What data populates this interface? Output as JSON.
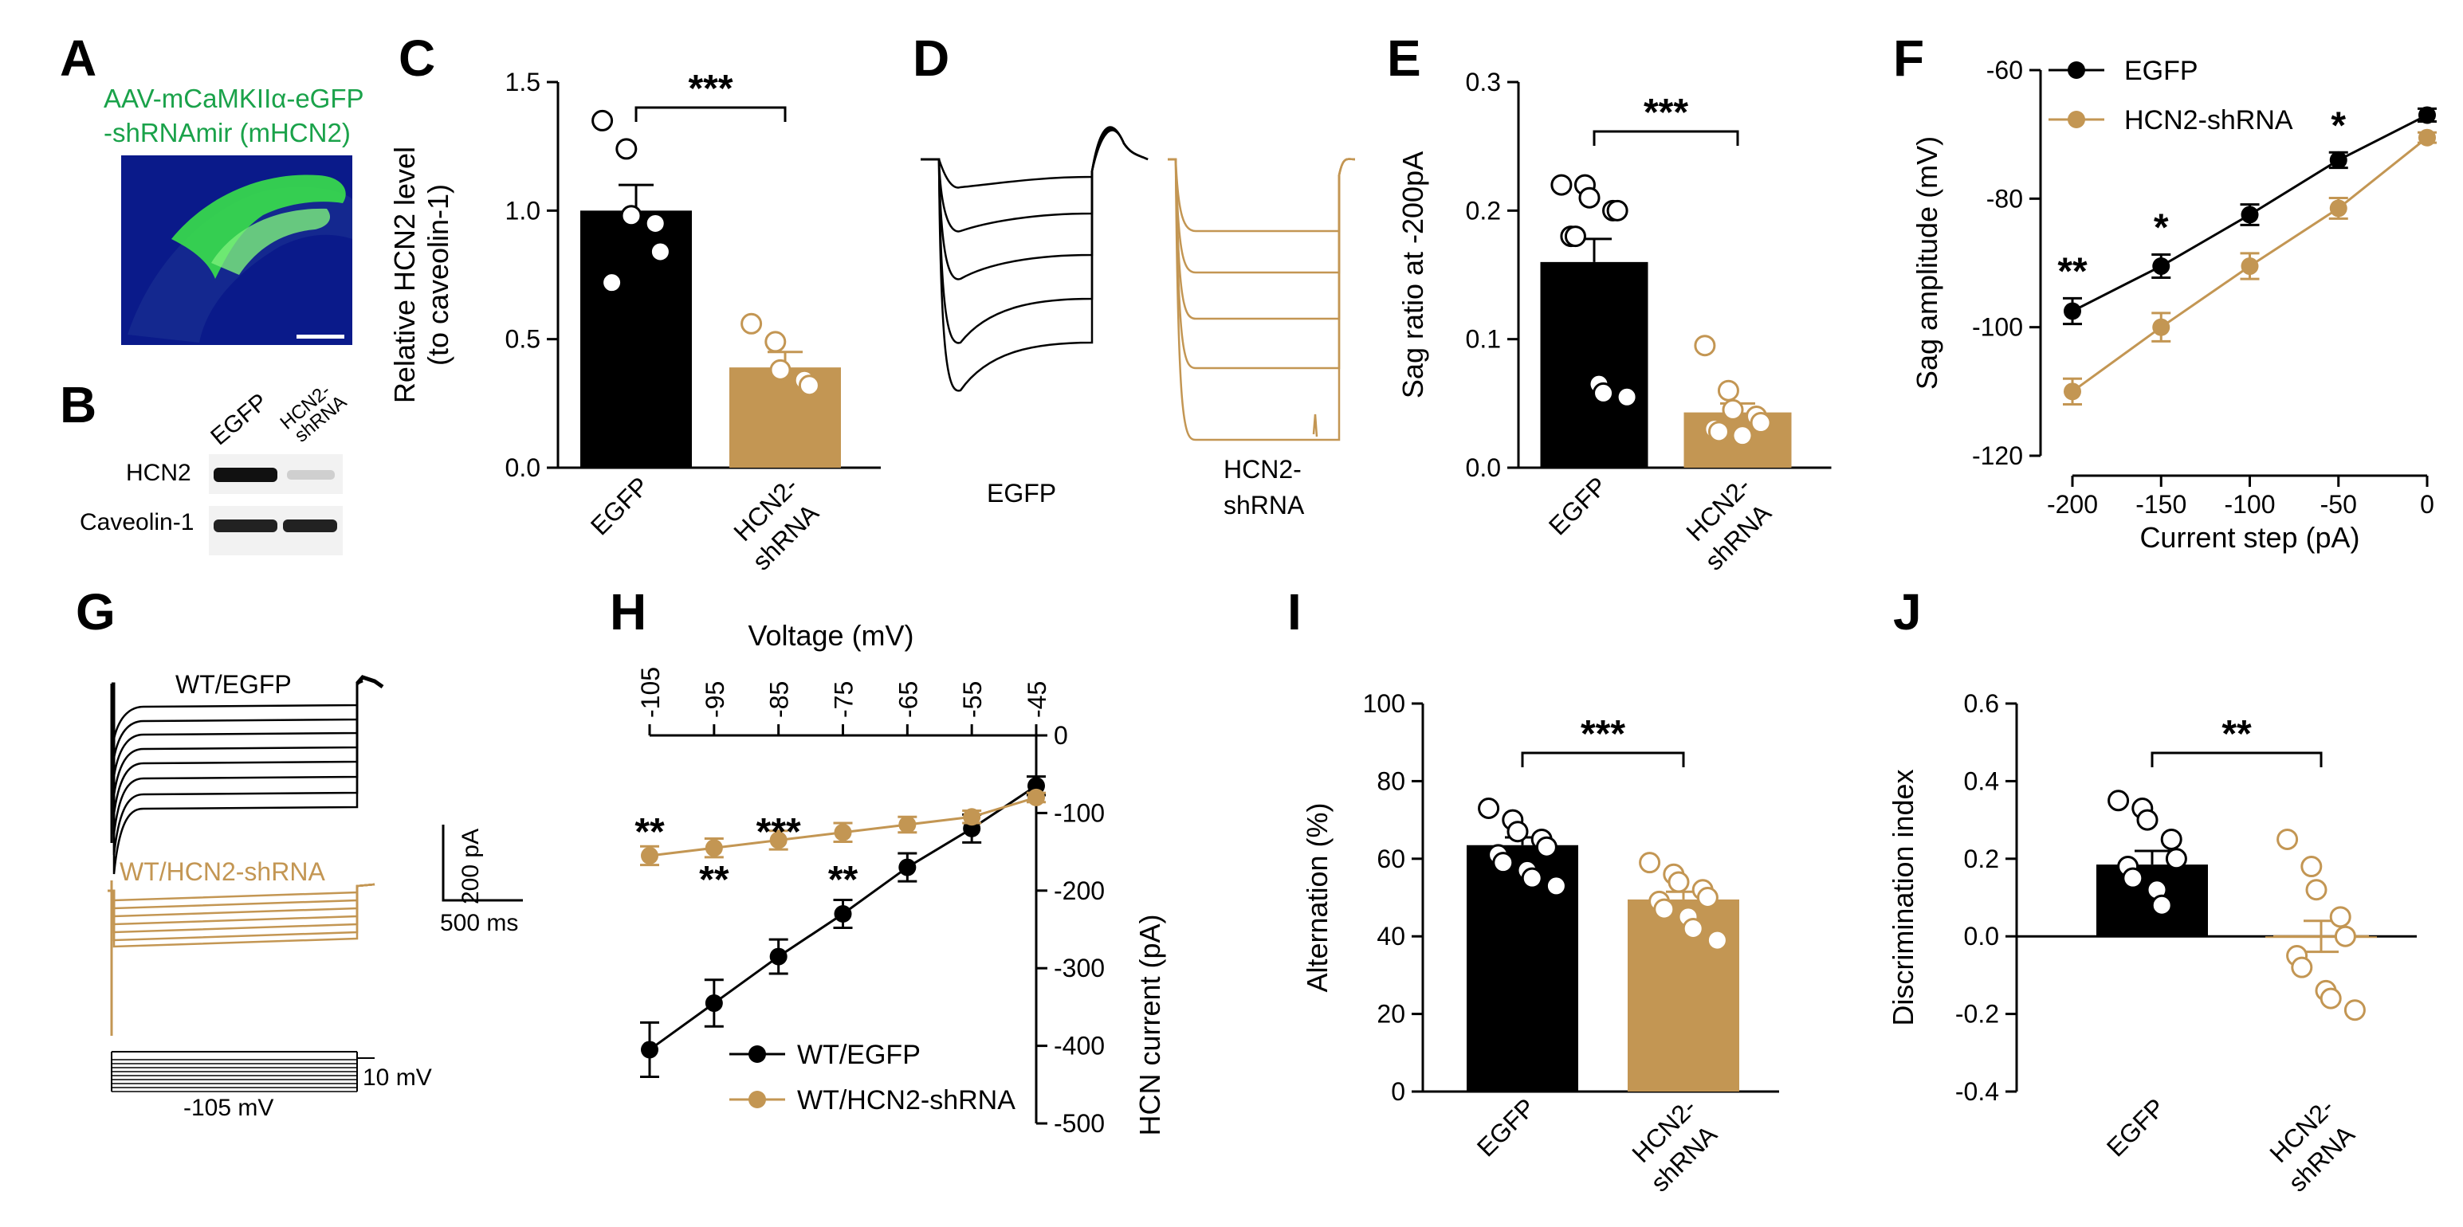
{
  "colors": {
    "egfp": "#000000",
    "shrna": "#C39653",
    "green": "#1aa24a",
    "slice_bg": "#0a1a8a"
  },
  "panels": {
    "A": {
      "letter": "A",
      "caption_line1": "AAV-mCaMKIIα-eGFP",
      "caption_line2": "-shRNAmir (mHCN2)"
    },
    "B": {
      "letter": "B",
      "lane_labels": [
        "EGFP",
        "HCN2-",
        "shRNA"
      ],
      "row_labels": [
        "HCN2",
        "Caveolin-1"
      ]
    },
    "C": {
      "letter": "C"
    },
    "D": {
      "letter": "D",
      "labels": [
        "EGFP",
        "HCN2-",
        "shRNA"
      ]
    },
    "E": {
      "letter": "E"
    },
    "F": {
      "letter": "F"
    },
    "G": {
      "letter": "G",
      "labels": [
        "WT/EGFP",
        "WT/HCN2-shRNA"
      ],
      "scale_y": "200 pA",
      "scale_x": "500 ms",
      "protocol_hi": "10 mV",
      "protocol_lo": "-105 mV"
    },
    "H": {
      "letter": "H"
    },
    "I": {
      "letter": "I"
    },
    "J": {
      "letter": "J"
    }
  },
  "chart_data": [
    {
      "panel": "C",
      "type": "bar",
      "ylabel": "Relative HCN2 level (to caveolin-1)",
      "ylabel_lines": [
        "Relative HCN2 level",
        "(to caveolin-1)"
      ],
      "categories": [
        "EGFP",
        "HCN2-shRNA"
      ],
      "category_lines": [
        [
          "EGFP"
        ],
        [
          "HCN2-",
          "shRNA"
        ]
      ],
      "values": [
        1.0,
        0.39
      ],
      "sem": [
        0.1,
        0.06
      ],
      "points": [
        [
          1.35,
          1.24,
          0.98,
          0.95,
          0.84,
          0.72
        ],
        [
          0.56,
          0.49,
          0.38,
          0.34,
          0.32
        ]
      ],
      "ylim": [
        0,
        1.5
      ],
      "yticks": [
        "0.0",
        "0.5",
        "1.0",
        "1.5"
      ],
      "ytick_values": [
        0,
        0.5,
        1.0,
        1.5
      ],
      "significance": "***"
    },
    {
      "panel": "E",
      "type": "bar",
      "ylabel": "Sag ratio at -200pA",
      "categories": [
        "EGFP",
        "HCN2-shRNA"
      ],
      "category_lines": [
        [
          "EGFP"
        ],
        [
          "HCN2-",
          "shRNA"
        ]
      ],
      "values": [
        0.16,
        0.043
      ],
      "sem": [
        0.018,
        0.007
      ],
      "points": [
        [
          0.22,
          0.22,
          0.21,
          0.2,
          0.2,
          0.18,
          0.18,
          0.065,
          0.058,
          0.055
        ],
        [
          0.095,
          0.06,
          0.045,
          0.04,
          0.035,
          0.03,
          0.028,
          0.025
        ]
      ],
      "ylim": [
        0,
        0.3
      ],
      "yticks": [
        "0.0",
        "0.1",
        "0.2",
        "0.3"
      ],
      "ytick_values": [
        0,
        0.1,
        0.2,
        0.3
      ],
      "significance": "***"
    },
    {
      "panel": "F",
      "type": "line",
      "xlabel": "Current step (pA)",
      "ylabel": "Sag amplitude (mV)",
      "x": [
        -200,
        -150,
        -100,
        -50,
        0
      ],
      "series": [
        {
          "name": "EGFP",
          "values": [
            -97.5,
            -90.5,
            -82.5,
            -74,
            -67
          ],
          "sem": [
            2,
            1.8,
            1.6,
            1.2,
            1
          ]
        },
        {
          "name": "HCN2-shRNA",
          "values": [
            -110,
            -100,
            -90.5,
            -81.5,
            -70.5
          ],
          "sem": [
            2,
            2.2,
            2,
            1.6,
            0.8
          ]
        }
      ],
      "xlim": [
        -200,
        0
      ],
      "xticks": [
        "-200",
        "-150",
        "-100",
        "-50",
        "0"
      ],
      "xtick_values": [
        -200,
        -150,
        -100,
        -50,
        0
      ],
      "ylim": [
        -120,
        -60
      ],
      "yticks": [
        "-60",
        "-80",
        "-100",
        "-120"
      ],
      "ytick_values": [
        -60,
        -80,
        -100,
        -120
      ],
      "legend": "top-left",
      "annotations": [
        {
          "x": -200,
          "text": "**"
        },
        {
          "x": -150,
          "text": "*"
        },
        {
          "x": -50,
          "text": "*"
        }
      ]
    },
    {
      "panel": "H",
      "type": "line",
      "xlabel": "Voltage (mV)",
      "ylabel": "HCN current (pA)",
      "x": [
        -105,
        -95,
        -85,
        -75,
        -65,
        -55,
        -45
      ],
      "series": [
        {
          "name": "WT/EGFP",
          "values": [
            -405,
            -345,
            -285,
            -230,
            -170,
            -120,
            -65
          ],
          "sem": [
            35,
            30,
            22,
            18,
            18,
            18,
            12
          ]
        },
        {
          "name": "WT/HCN2-shRNA",
          "values": [
            -155,
            -145,
            -135,
            -125,
            -115,
            -105,
            -80
          ],
          "sem": [
            12,
            12,
            12,
            12,
            10,
            8,
            6
          ]
        }
      ],
      "xlim": [
        -105,
        -45
      ],
      "xticks": [
        "-105",
        "-95",
        "-85",
        "-75",
        "-65",
        "-55",
        "-45"
      ],
      "xtick_values": [
        -105,
        -95,
        -85,
        -75,
        -65,
        -55,
        -45
      ],
      "ylim": [
        -500,
        0
      ],
      "yticks": [
        "0",
        "-100",
        "-200",
        "-300",
        "-400",
        "-500"
      ],
      "ytick_values": [
        0,
        -100,
        -200,
        -300,
        -400,
        -500
      ],
      "legend": "bottom-center",
      "annotations": [
        {
          "x": -105,
          "text": "**",
          "row": "top"
        },
        {
          "x": -95,
          "text": "**",
          "row": "bottom"
        },
        {
          "x": -85,
          "text": "***",
          "row": "top"
        },
        {
          "x": -75,
          "text": "**",
          "row": "bottom"
        }
      ]
    },
    {
      "panel": "I",
      "type": "bar",
      "ylabel": "Alternation (%)",
      "categories": [
        "EGFP",
        "HCN2-shRNA"
      ],
      "category_lines": [
        [
          "EGFP"
        ],
        [
          "HCN2-",
          "shRNA"
        ]
      ],
      "values": [
        63.5,
        49.5
      ],
      "sem": [
        2,
        2
      ],
      "points": [
        [
          73,
          70,
          67,
          65,
          63,
          61,
          59,
          57,
          55,
          53
        ],
        [
          59,
          56,
          54,
          52,
          50,
          49,
          47,
          45,
          42,
          39
        ]
      ],
      "ylim": [
        0,
        100
      ],
      "yticks": [
        "0",
        "20",
        "40",
        "60",
        "80",
        "100"
      ],
      "ytick_values": [
        0,
        20,
        40,
        60,
        80,
        100
      ],
      "significance": "***"
    },
    {
      "panel": "J",
      "type": "bar",
      "ylabel": "Discrimination index",
      "categories": [
        "EGFP",
        "HCN2-shRNA"
      ],
      "category_lines": [
        [
          "EGFP"
        ],
        [
          "HCN2-",
          "shRNA"
        ]
      ],
      "values": [
        0.185,
        0.0
      ],
      "sem": [
        0.035,
        0.04
      ],
      "points": [
        [
          0.35,
          0.33,
          0.3,
          0.25,
          0.2,
          0.18,
          0.15,
          0.12,
          0.08
        ],
        [
          0.25,
          0.18,
          0.12,
          0.05,
          0.0,
          -0.05,
          -0.08,
          -0.14,
          -0.16,
          -0.19
        ]
      ],
      "ylim": [
        -0.4,
        0.6
      ],
      "yticks": [
        "-0.4",
        "-0.2",
        "0.0",
        "0.2",
        "0.4",
        "0.6"
      ],
      "ytick_values": [
        -0.4,
        -0.2,
        0,
        0.2,
        0.4,
        0.6
      ],
      "significance": "**"
    }
  ]
}
